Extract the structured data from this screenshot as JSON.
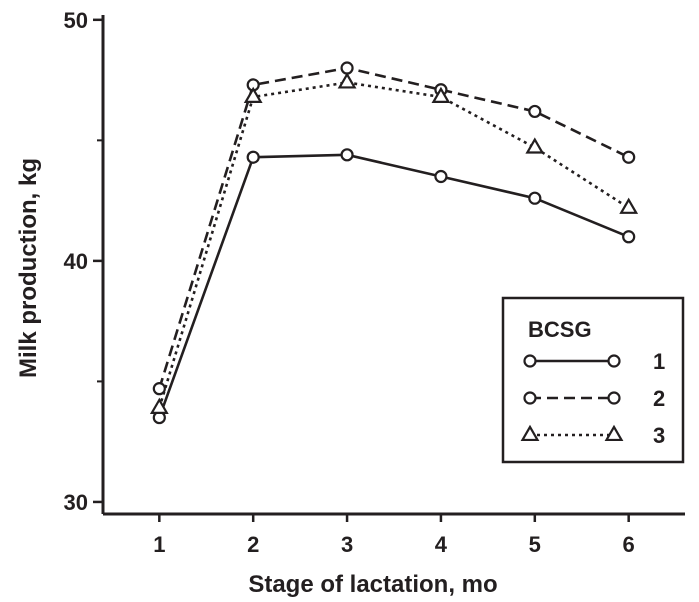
{
  "chart_data": {
    "type": "line",
    "xlabel": "Stage of lactation, mo",
    "ylabel": "Milk production, kg",
    "x": [
      1,
      2,
      3,
      4,
      5,
      6
    ],
    "xlim": [
      0.4,
      6.6
    ],
    "ylim": [
      29.5,
      50.2
    ],
    "yticks": [
      30,
      40,
      50
    ],
    "yticks_minor": [
      35,
      45
    ],
    "grid": false,
    "legend": {
      "title": "BCSG",
      "placement": "right"
    },
    "series": [
      {
        "name": "1",
        "marker": "circle",
        "line": "solid",
        "values": [
          33.5,
          44.3,
          44.4,
          43.5,
          42.6,
          41.0
        ]
      },
      {
        "name": "2",
        "marker": "circle",
        "line": "dashed",
        "values": [
          34.7,
          47.3,
          48.0,
          47.1,
          46.2,
          44.3
        ]
      },
      {
        "name": "3",
        "marker": "triangle",
        "line": "dotted",
        "values": [
          33.9,
          46.8,
          47.4,
          46.8,
          44.7,
          42.2
        ]
      }
    ],
    "colors": {
      "ink": "#231f20",
      "background": "#ffffff"
    }
  }
}
